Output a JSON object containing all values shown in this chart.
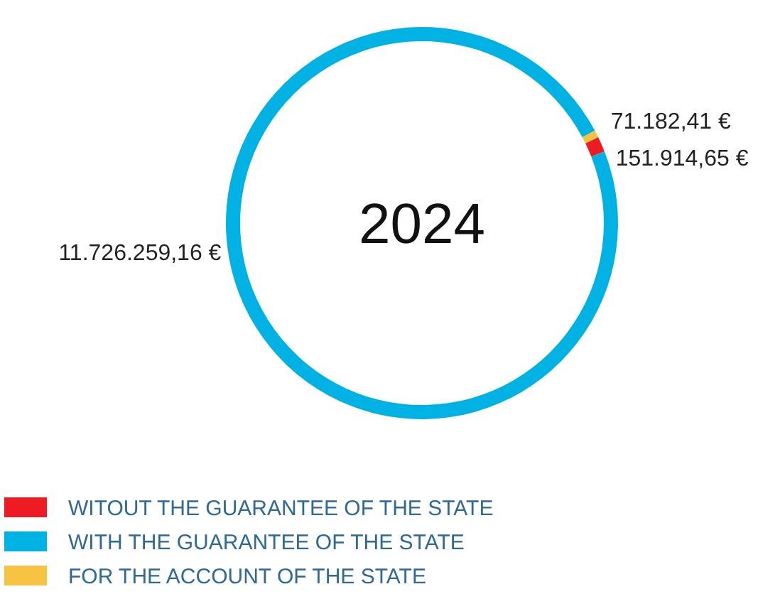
{
  "chart_data": {
    "type": "donut",
    "title": "2024",
    "categories": [
      "WITOUT THE GUARANTEE OF THE STATE",
      "WITH THE GUARANTEE OF THE STATE",
      "FOR THE ACCOUNT OF THE STATE"
    ],
    "values": [
      151914.65,
      11726259.16,
      71182.41
    ],
    "colors": [
      "#ed1c24",
      "#00b2e3",
      "#f5c242"
    ],
    "value_labels": [
      "151.914,65 €",
      "11.726.259,16 €",
      "71.182,41 €"
    ],
    "legend": "bottom"
  }
}
